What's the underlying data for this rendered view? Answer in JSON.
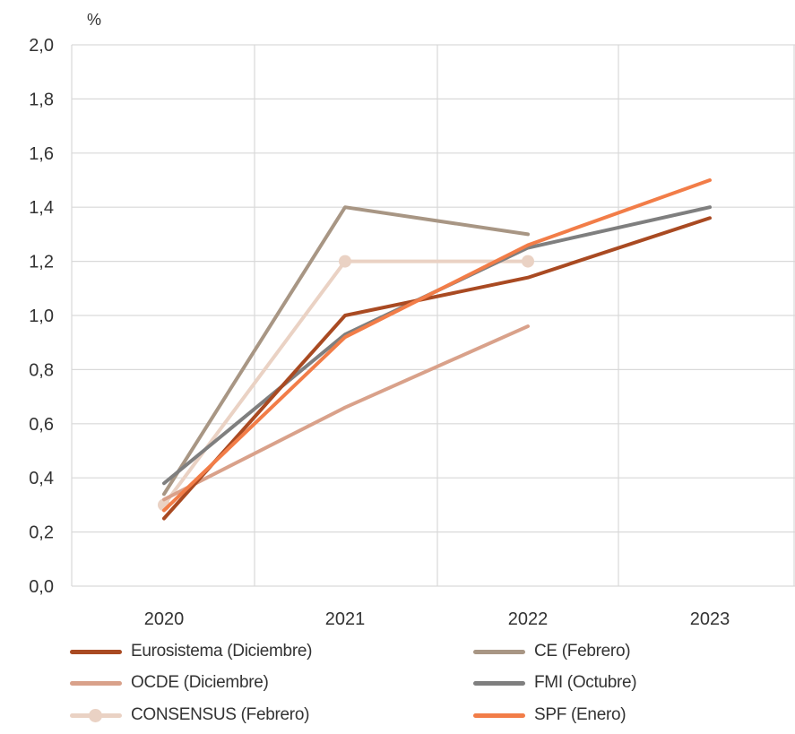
{
  "chart_data": {
    "type": "line",
    "unit": "%",
    "categories": [
      "2020",
      "2021",
      "2022",
      "2023"
    ],
    "ylim": [
      0,
      2.0
    ],
    "yticks": [
      "0,0",
      "0,2",
      "0,4",
      "0,6",
      "0,8",
      "1,0",
      "1,2",
      "1,4",
      "1,6",
      "1,8",
      "2,0"
    ],
    "grid": true,
    "legend_position": "bottom",
    "series": [
      {
        "name": "CONSENSUS (Febrero)",
        "color": "#ead2c4",
        "markers": true,
        "values": [
          0.3,
          1.2,
          1.2,
          null
        ]
      },
      {
        "name": "OCDE (Diciembre)",
        "color": "#d9a18a",
        "markers": false,
        "values": [
          0.32,
          0.66,
          0.96,
          null
        ]
      },
      {
        "name": "CE (Febrero)",
        "color": "#a89684",
        "markers": false,
        "values": [
          0.34,
          1.4,
          1.3,
          null
        ]
      },
      {
        "name": "FMI (Octubre)",
        "color": "#7f7f7f",
        "markers": false,
        "values": [
          0.38,
          0.93,
          1.25,
          1.4
        ]
      },
      {
        "name": "Eurosistema (Diciembre)",
        "color": "#a94a22",
        "markers": false,
        "values": [
          0.25,
          1.0,
          1.14,
          1.36
        ]
      },
      {
        "name": "SPF (Enero)",
        "color": "#f27d48",
        "markers": false,
        "values": [
          0.28,
          0.92,
          1.26,
          1.5
        ]
      }
    ]
  },
  "legend": [
    {
      "label": "Eurosistema (Diciembre)",
      "color": "#a94a22",
      "marker": false
    },
    {
      "label": "CE (Febrero)",
      "color": "#a89684",
      "marker": false
    },
    {
      "label": "OCDE (Diciembre)",
      "color": "#d9a18a",
      "marker": false
    },
    {
      "label": "FMI (Octubre)",
      "color": "#7f7f7f",
      "marker": false
    },
    {
      "label": "CONSENSUS (Febrero)",
      "color": "#ead2c4",
      "marker": true
    },
    {
      "label": "SPF (Enero)",
      "color": "#f27d48",
      "marker": false
    }
  ]
}
